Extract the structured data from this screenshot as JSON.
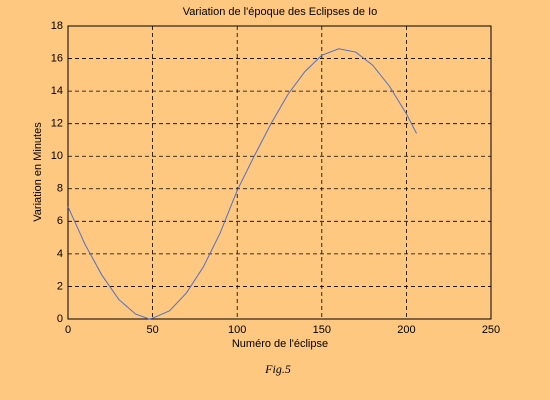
{
  "chart_data": {
    "type": "line",
    "title": "Variation de l'époque des Eclipses de Io",
    "xlabel": "Numéro de l'éclipse",
    "ylabel": "Variation en Minutes",
    "caption": "Fig.5",
    "x": [
      0,
      10,
      20,
      30,
      40,
      48,
      50,
      60,
      70,
      80,
      90,
      100,
      110,
      120,
      130,
      140,
      150,
      160,
      170,
      180,
      190,
      200,
      206
    ],
    "values": [
      6.9,
      4.6,
      2.7,
      1.2,
      0.3,
      0,
      0.05,
      0.5,
      1.6,
      3.2,
      5.3,
      7.9,
      10.0,
      12.0,
      13.8,
      15.2,
      16.2,
      16.6,
      16.4,
      15.6,
      14.3,
      12.6,
      11.4
    ],
    "color": "#5070c8",
    "xlim": [
      0,
      250
    ],
    "xticks": [
      0,
      50,
      100,
      150,
      200,
      250
    ],
    "ylim": [
      0,
      18
    ],
    "yticks": [
      0,
      2,
      4,
      6,
      8,
      10,
      12,
      14,
      16,
      18
    ],
    "grid": true
  }
}
